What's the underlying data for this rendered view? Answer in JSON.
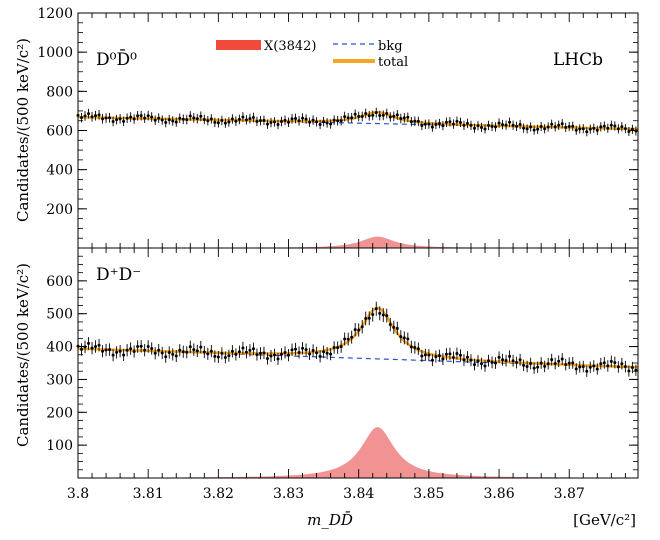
{
  "experiment_label": "LHCb",
  "legend": {
    "signal": "X(3842)",
    "bkg": "bkg",
    "total": "total"
  },
  "colors": {
    "signal": "#f08080",
    "signal_legend": "#ef4a3c",
    "bkg": "#2a52d6",
    "total": "#f5a623",
    "points": "#000000"
  },
  "xaxis": {
    "label": "m_DD̄",
    "unit": "[GeV/c²]",
    "ticks": [
      "3.8",
      "3.81",
      "3.82",
      "3.83",
      "3.84",
      "3.85",
      "3.86",
      "3.87"
    ]
  },
  "chart_data": [
    {
      "type": "scatter",
      "panel_label": "D⁰D̄⁰",
      "ylabel": "Candidates/(500 keV/c²)",
      "xlim": [
        3.8,
        3.8798
      ],
      "ylim": [
        0,
        1200
      ],
      "ytick_labels": [
        "200",
        "400",
        "600",
        "800",
        "1000",
        "1200"
      ],
      "model": {
        "bkg": {
          "start": 668,
          "end": 607
        },
        "signal": {
          "mass": 3.8427,
          "width": 0.0029,
          "peak_height": 58
        }
      },
      "x_start": 3.8,
      "x_end": 3.8795,
      "x_step": 0.0005,
      "y_fluctuation": 20,
      "series": [
        {
          "name": "X(3842)"
        },
        {
          "name": "bkg"
        },
        {
          "name": "total"
        }
      ]
    },
    {
      "type": "scatter",
      "panel_label": "D⁺D⁻",
      "ylabel": "Candidates/(500 keV/c²)",
      "xlim": [
        3.8,
        3.8798
      ],
      "ylim": [
        0,
        700
      ],
      "ytick_labels": [
        "100",
        "200",
        "300",
        "400",
        "500",
        "600"
      ],
      "model": {
        "bkg": {
          "start": 393,
          "end": 336
        },
        "signal": {
          "mass": 3.8427,
          "width": 0.0029,
          "peak_height": 155
        }
      },
      "x_start": 3.8,
      "x_end": 3.8795,
      "x_step": 0.0005,
      "y_fluctuation": 18,
      "series": [
        {
          "name": "X(3842)"
        },
        {
          "name": "bkg"
        },
        {
          "name": "total"
        }
      ]
    }
  ]
}
